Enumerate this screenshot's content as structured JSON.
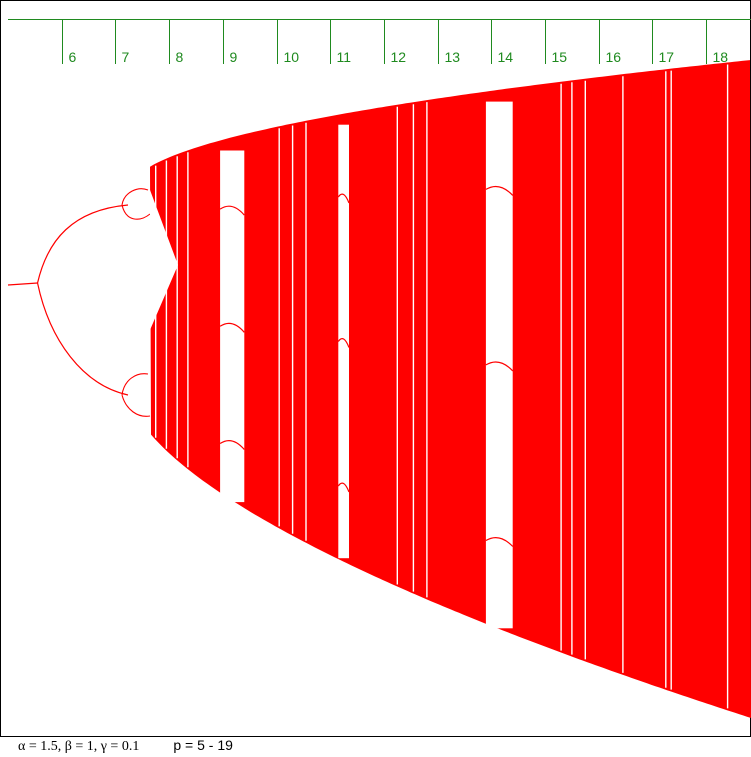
{
  "chart_data": {
    "type": "bifurcation-diagram",
    "x_axis": {
      "parameter": "p",
      "tick_labels": [
        "6",
        "7",
        "8",
        "9",
        "10",
        "11",
        "12",
        "13",
        "14",
        "15",
        "16",
        "17",
        "18"
      ],
      "range": [
        5,
        19
      ]
    },
    "series_color": "#ff0000",
    "axis_color": "#1f8a1f",
    "fixed_point_branch": {
      "p_from": 5,
      "p_to": 5.55
    },
    "period_doubling": [
      5.55,
      6.95,
      7.2
    ],
    "chaos_onset_p": 7.45,
    "periodic_windows": [
      {
        "p_from": 8.95,
        "p_to": 9.4
      },
      {
        "p_from": 11.15,
        "p_to": 11.35
      },
      {
        "p_from": 13.9,
        "p_to": 14.4
      }
    ],
    "thin_windows_p": [
      7.75,
      7.95,
      8.15,
      8.35,
      10.05,
      10.3,
      10.55,
      12.25,
      12.55,
      12.8,
      15.3,
      15.5,
      15.75,
      16.45,
      17.25,
      17.35,
      18.4
    ]
  },
  "caption": {
    "params": "α = 1.5, β = 1, γ = 0.1",
    "p_range": "p = 5 - 19"
  }
}
